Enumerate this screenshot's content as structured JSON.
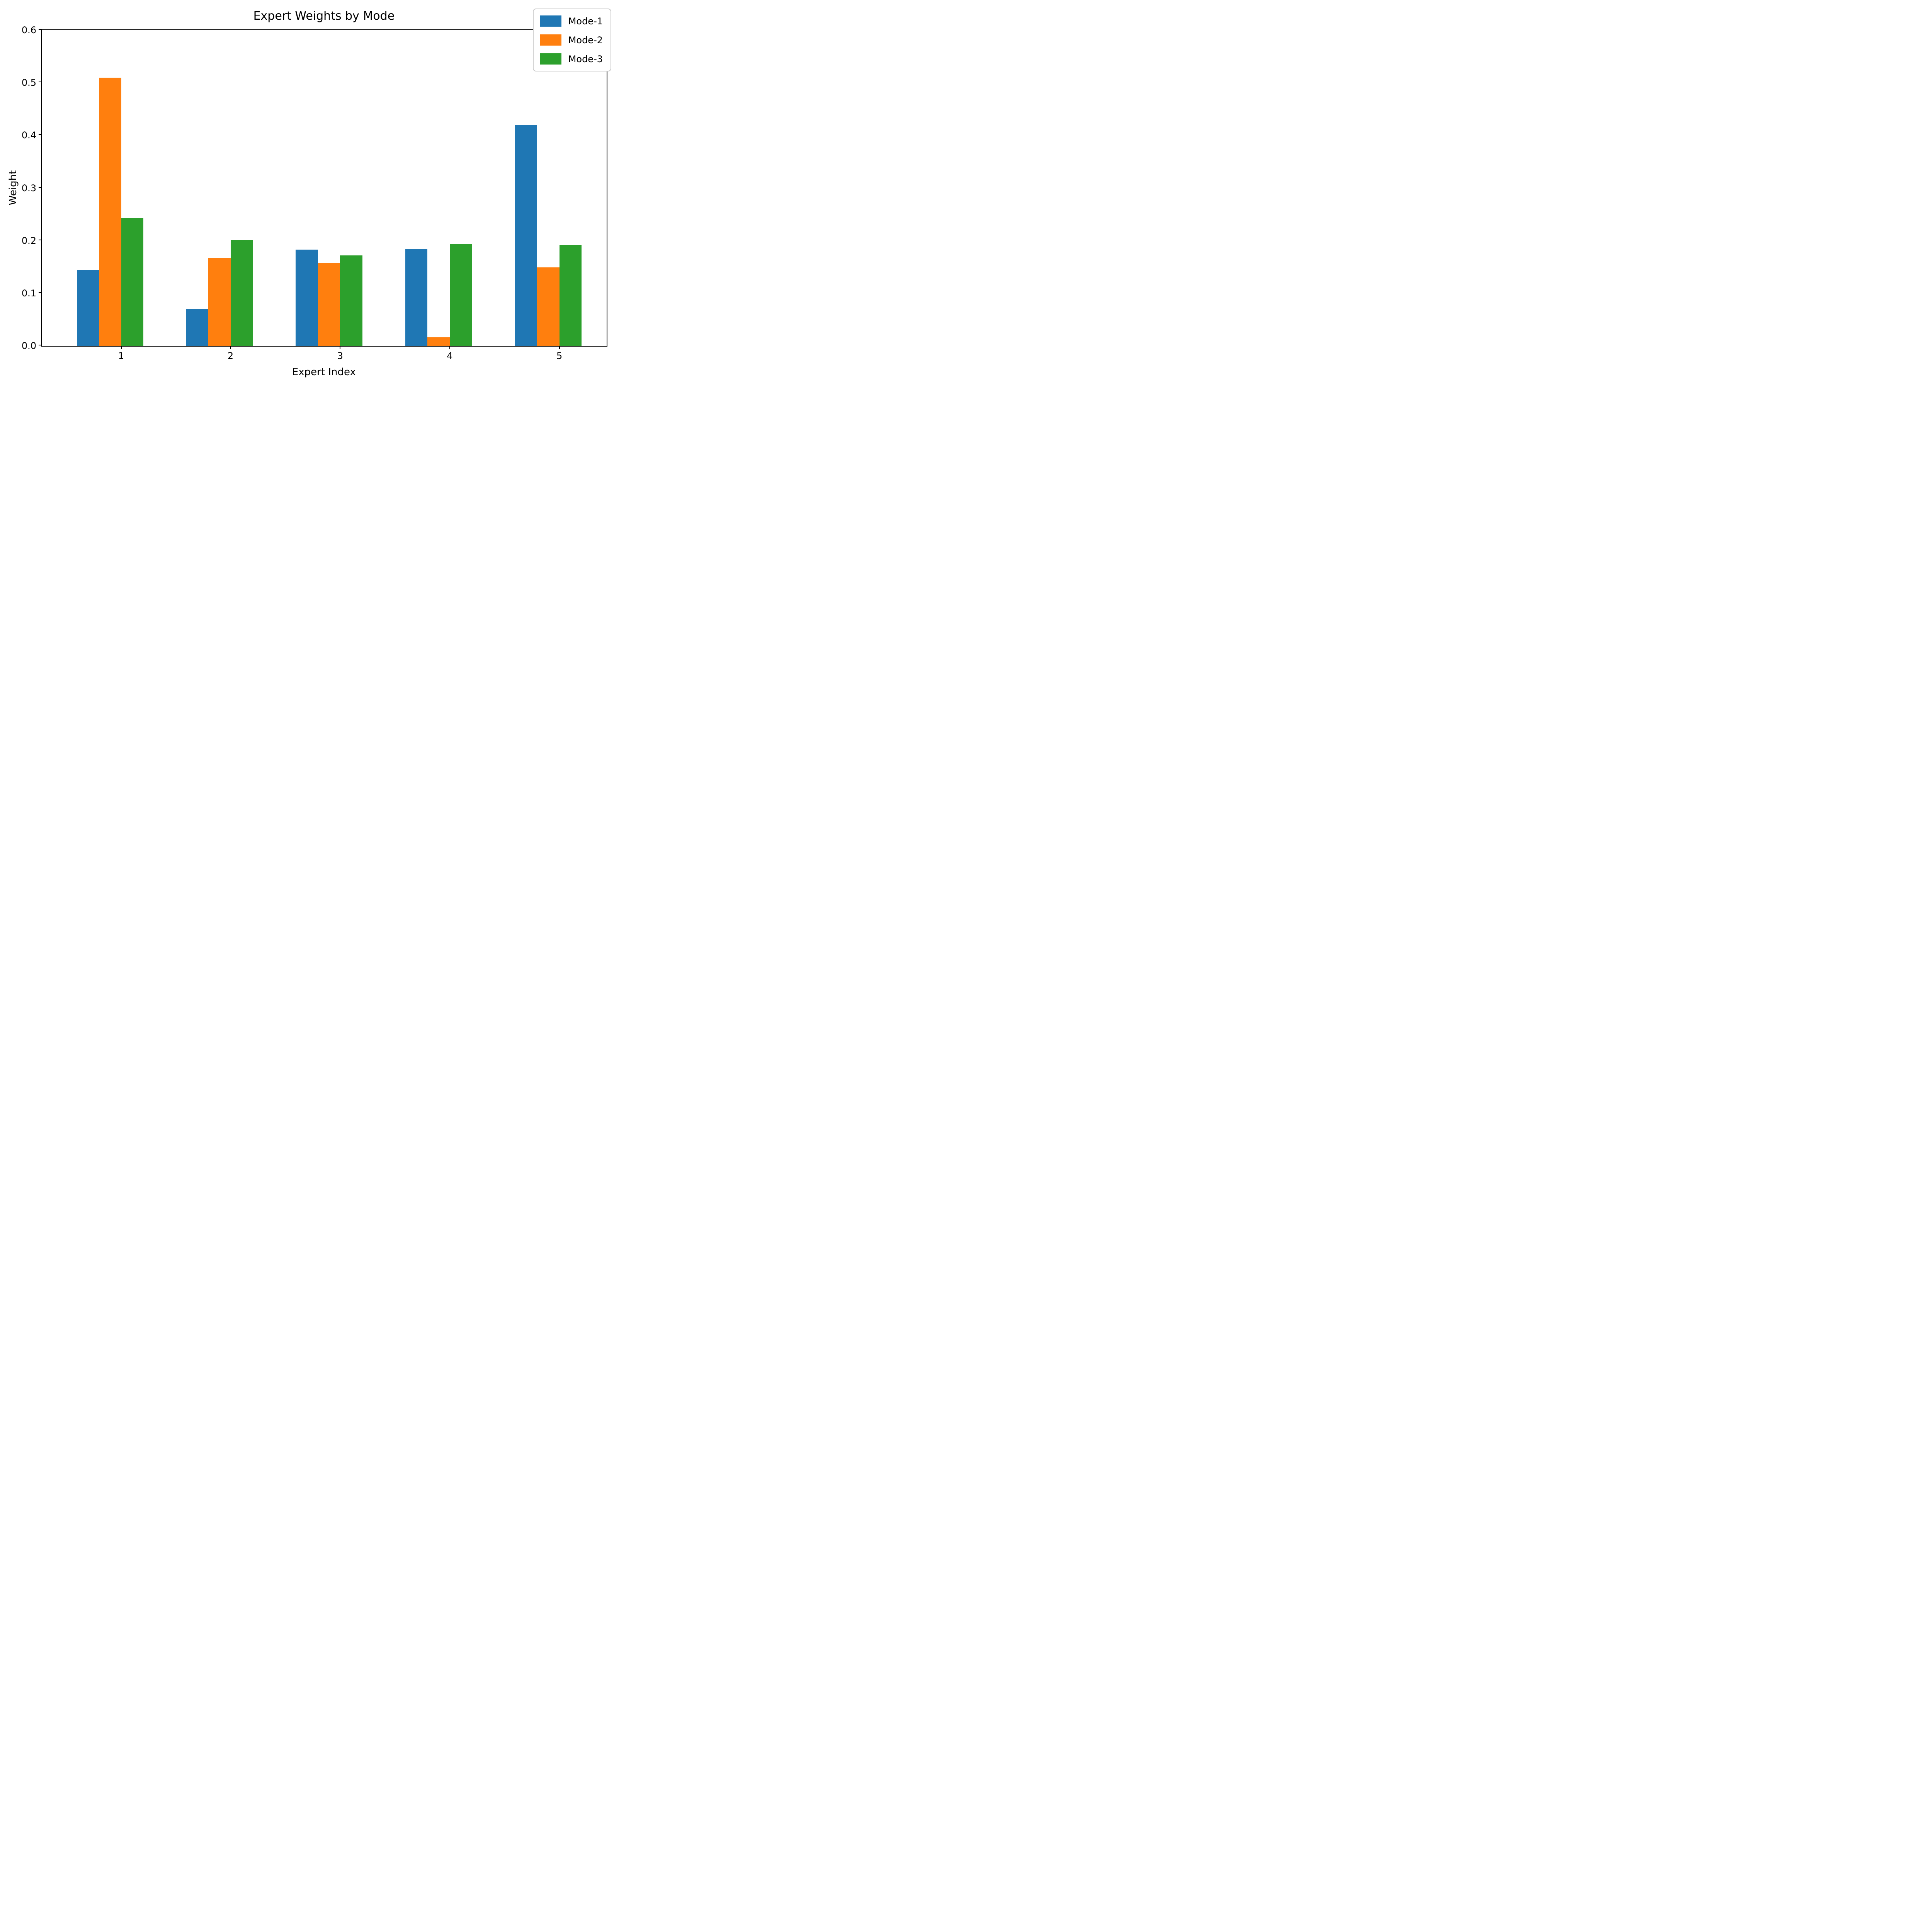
{
  "chart_data": {
    "type": "bar",
    "title": "Expert Weights by Mode",
    "xlabel": "Expert Index",
    "ylabel": "Weight",
    "categories": [
      "1",
      "2",
      "3",
      "4",
      "5"
    ],
    "series": [
      {
        "name": "Mode-1",
        "color": "#1f77b4",
        "values": [
          0.145,
          0.07,
          0.183,
          0.184,
          0.42
        ]
      },
      {
        "name": "Mode-2",
        "color": "#ff7f0e",
        "values": [
          0.51,
          0.167,
          0.158,
          0.016,
          0.149
        ]
      },
      {
        "name": "Mode-3",
        "color": "#2ca02c",
        "values": [
          0.243,
          0.201,
          0.172,
          0.194,
          0.192
        ]
      }
    ],
    "ylim": [
      0.0,
      0.6
    ],
    "yticks": [
      "0.0",
      "0.1",
      "0.2",
      "0.3",
      "0.4",
      "0.5",
      "0.6"
    ],
    "grid": false,
    "legend_position": "upper right",
    "bar_group_layout": "edge-aligned, three bars per category, tick at orange/green boundary"
  }
}
